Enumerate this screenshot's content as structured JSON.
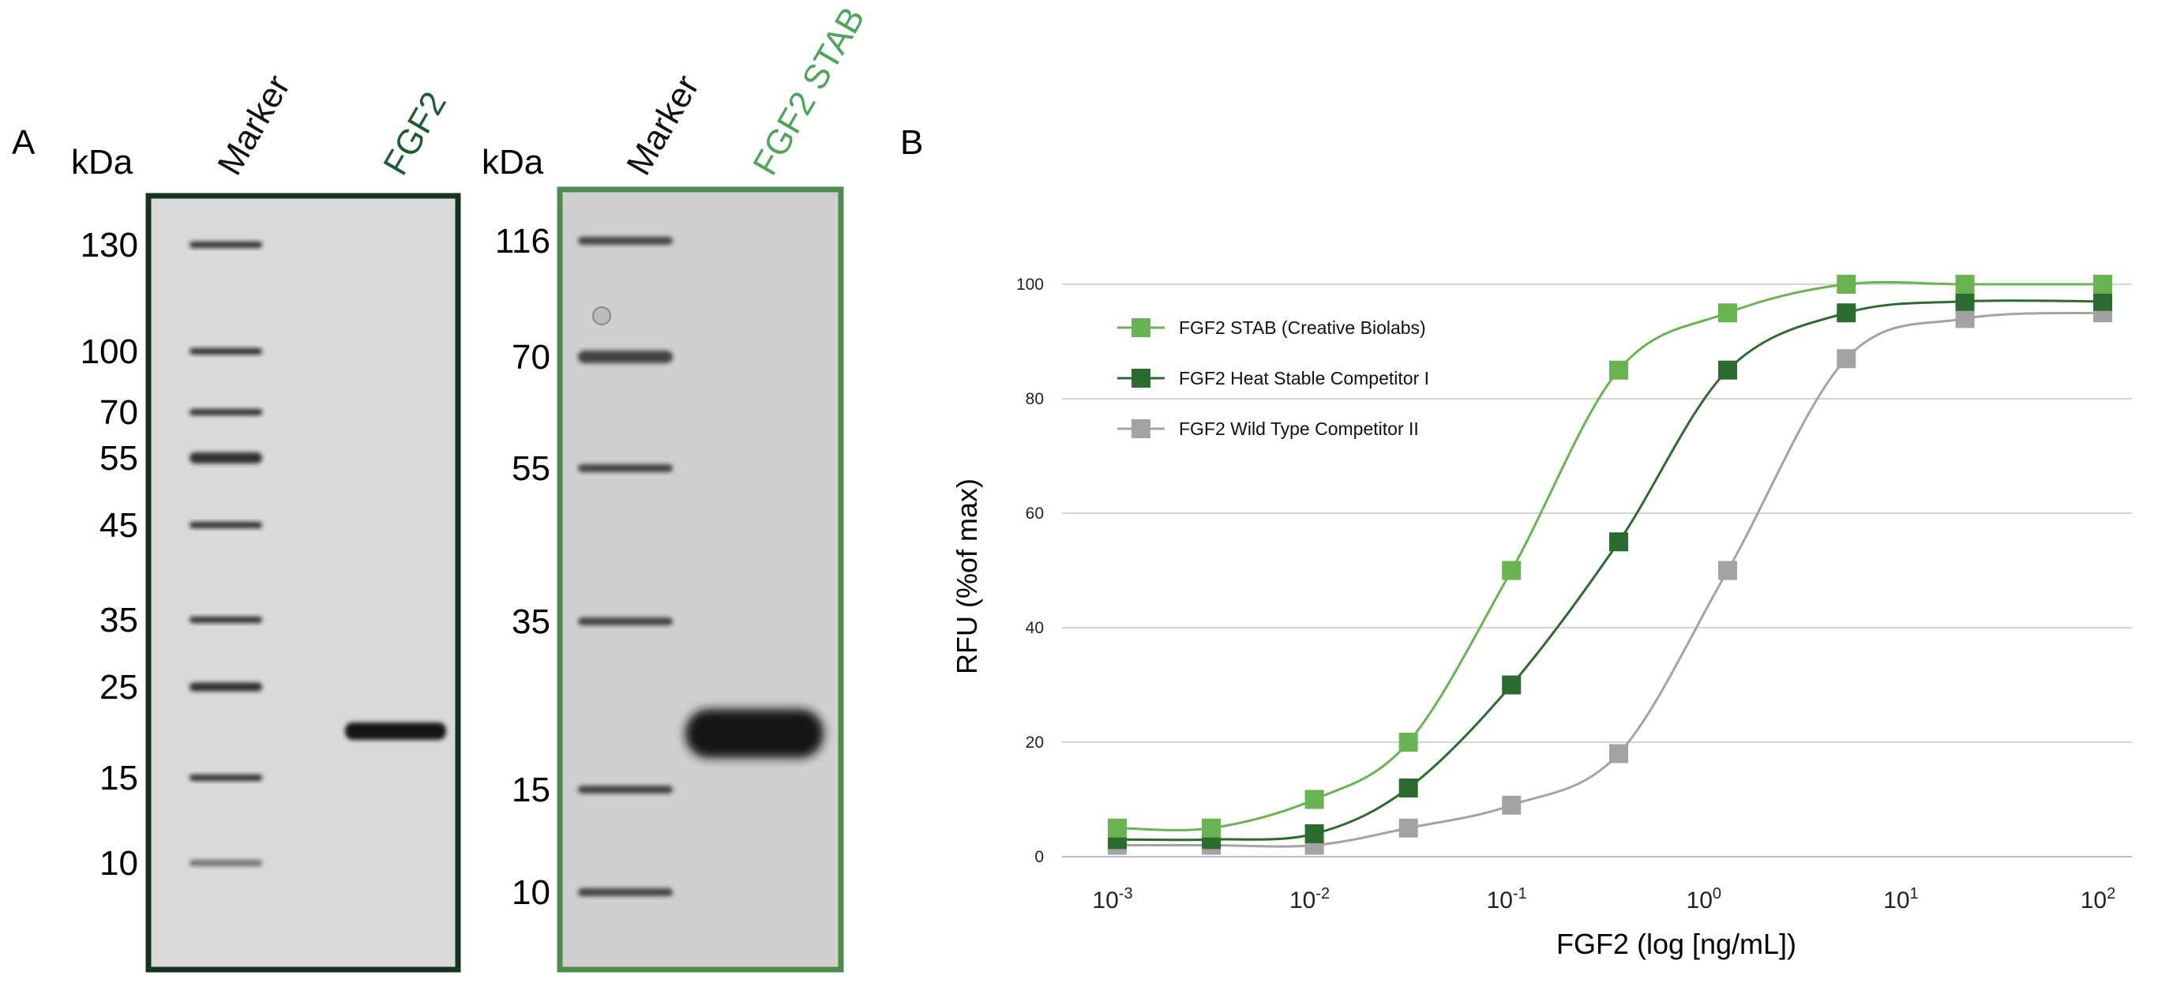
{
  "panel_a": {
    "label": "A",
    "left_gel": {
      "kda_label": "kDa",
      "lane_labels": [
        "Marker",
        "FGF2"
      ],
      "lane_colors": [
        "#111111",
        "#1e5a33"
      ],
      "frame_color": "#16331f",
      "bg": "#d9d9d9",
      "markers": [
        "130",
        "100",
        "70",
        "55",
        "45",
        "35",
        "25",
        "15",
        "10"
      ]
    },
    "right_gel": {
      "kda_label": "kDa",
      "lane_labels": [
        "Marker",
        "FGF2 STAB"
      ],
      "lane_colors": [
        "#111111",
        "#4ea45b"
      ],
      "frame_color": "#4d8c4f",
      "bg": "#cfcfcf",
      "markers": [
        "116",
        "70",
        "55",
        "35",
        "15",
        "10"
      ]
    }
  },
  "panel_b": {
    "label": "B",
    "chart_data": {
      "type": "line",
      "title": "",
      "xlabel": "FGF2 (log [ng/mL])",
      "ylabel": "RFU (%of max)",
      "x_scale": "log",
      "x_ticks": [
        {
          "base": "10",
          "exp": "-3"
        },
        {
          "base": "10",
          "exp": "-2"
        },
        {
          "base": "10",
          "exp": "-1"
        },
        {
          "base": "10",
          "exp": "0"
        },
        {
          "base": "10",
          "exp": "1"
        },
        {
          "base": "10",
          "exp": "2"
        }
      ],
      "y_ticks": [
        "0",
        "20",
        "40",
        "60",
        "80",
        "100"
      ],
      "ylim": [
        0,
        100
      ],
      "grid": true,
      "legend_position": "top-left",
      "x": [
        0.001,
        0.003,
        0.01,
        0.03,
        0.1,
        0.35,
        1.25,
        5,
        20,
        100
      ],
      "series": [
        {
          "name": "FGF2 STAB (Creative Biolabs)",
          "color": "#6ab352",
          "values": [
            5,
            5,
            10,
            20,
            50,
            85,
            95,
            100,
            100,
            100
          ]
        },
        {
          "name": "FGF2 Heat Stable Competitor I",
          "color": "#2c6b2f",
          "values": [
            3,
            3,
            4,
            12,
            30,
            55,
            85,
            95,
            97,
            97
          ]
        },
        {
          "name": "FGF2 Wild Type Competitor II",
          "color": "#a3a3a3",
          "values": [
            2,
            2,
            2,
            5,
            9,
            18,
            50,
            87,
            94,
            95
          ]
        }
      ]
    }
  }
}
